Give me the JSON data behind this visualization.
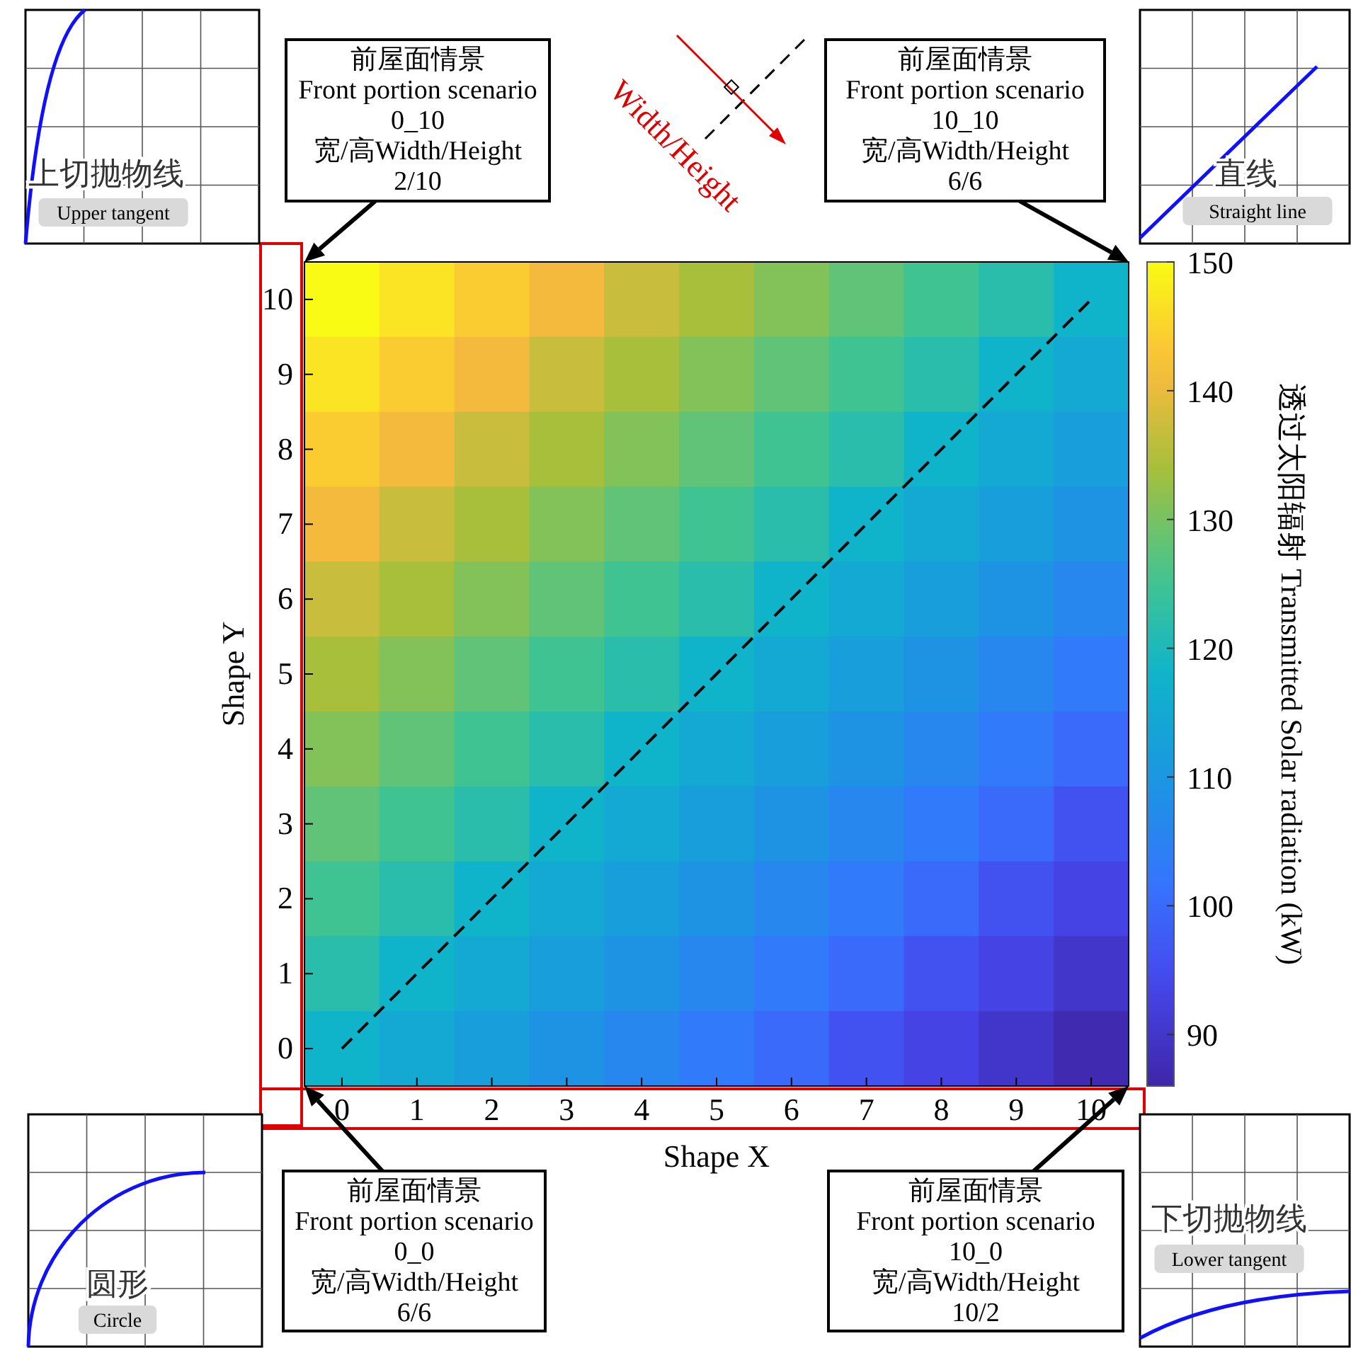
{
  "chart_data": {
    "type": "heatmap",
    "xlabel": "Shape X",
    "ylabel": "Shape Y",
    "clabel": "透过太阳辐射  Transmitted Solar radiation (kW)",
    "categories": [
      "0",
      "1",
      "2",
      "3",
      "4",
      "5",
      "6",
      "7",
      "8",
      "9",
      "10"
    ],
    "y_categories": [
      "10",
      "9",
      "8",
      "7",
      "6",
      "5",
      "4",
      "3",
      "2",
      "1",
      "0"
    ],
    "cells": [
      [
        150,
        147,
        144,
        141,
        137,
        134,
        131,
        128,
        125,
        122,
        118
      ],
      [
        147,
        144,
        141,
        137,
        134,
        131,
        128,
        125,
        122,
        118,
        115
      ],
      [
        144,
        141,
        137,
        134,
        131,
        128,
        125,
        122,
        118,
        115,
        112
      ],
      [
        141,
        137,
        134,
        131,
        128,
        125,
        122,
        118,
        115,
        112,
        109
      ],
      [
        137,
        134,
        131,
        128,
        125,
        122,
        118,
        115,
        112,
        109,
        106
      ],
      [
        134,
        131,
        128,
        125,
        122,
        118,
        115,
        112,
        109,
        106,
        103
      ],
      [
        131,
        128,
        125,
        122,
        118,
        115,
        112,
        109,
        106,
        103,
        100
      ],
      [
        128,
        125,
        122,
        118,
        115,
        112,
        109,
        106,
        103,
        100,
        96
      ],
      [
        125,
        122,
        118,
        115,
        112,
        109,
        106,
        103,
        100,
        96,
        93
      ],
      [
        122,
        118,
        115,
        112,
        109,
        106,
        103,
        100,
        96,
        93,
        90
      ],
      [
        118,
        115,
        112,
        109,
        106,
        103,
        100,
        96,
        93,
        90,
        87
      ]
    ],
    "clim": [
      86,
      150
    ],
    "cticks": [
      90,
      100,
      110,
      120,
      130,
      140,
      150
    ],
    "series": [
      {
        "type": "line",
        "values": [
          10,
          9,
          8,
          7,
          6,
          5,
          4,
          3,
          2,
          1,
          0
        ],
        "color": "#000000",
        "line_style": "dashed"
      }
    ],
    "annotations": [
      "前屋面情景\nFront portion scenario\n0_10\n宽/高Width/Height\n2/10",
      "前屋面情景\nFront portion scenario\n10_10\n宽/高Width/Height\n6/6",
      "前屋面情景\nFront portion scenario\n0_0\n宽/高Width/Height\n6/6",
      "前屋面情景\nFront portion scenario\n10_0\n宽/高Width/Height\n10/2",
      "Width/Height",
      "上切抛物线",
      "Upper tangent",
      "直线",
      "Straight line",
      "圆形",
      "Circle",
      "下切抛物线",
      "Lower tangent"
    ]
  }
}
